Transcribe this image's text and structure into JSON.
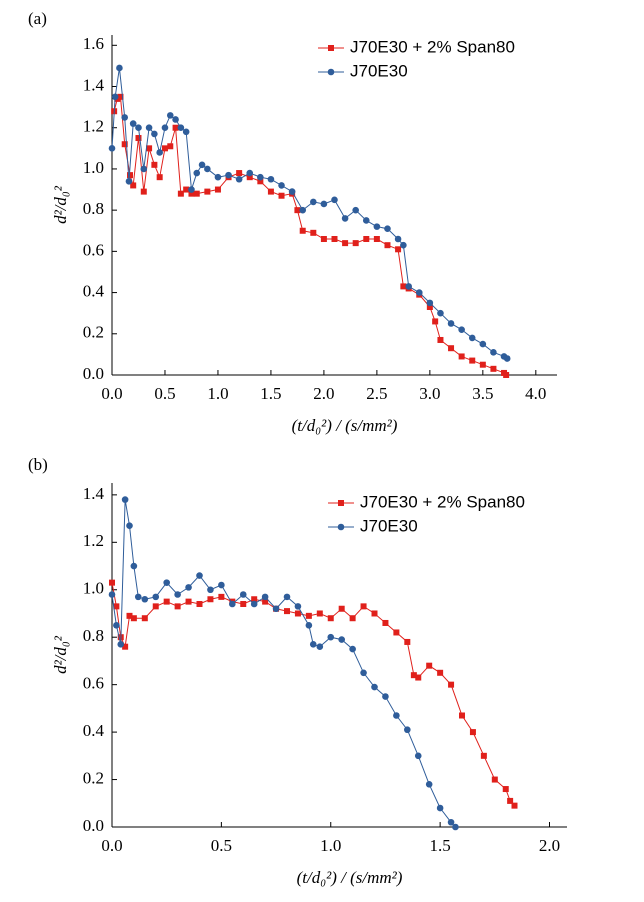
{
  "chart_data": [
    {
      "type": "line",
      "label": "(a)",
      "xlabel": "(t/d₀²) / (s/mm²)",
      "ylabel": "d²/d₀²",
      "xlim": [
        0,
        4.2
      ],
      "ylim": [
        0,
        1.65
      ],
      "xticks": [
        {
          "value": 0,
          "label": "0.0"
        },
        0.5,
        {
          "value": 1,
          "label": "1.0"
        },
        1.5,
        {
          "value": 2,
          "label": "2.0"
        },
        2.5,
        {
          "value": 3,
          "label": "3.0"
        },
        3.5,
        {
          "value": 4,
          "label": "4.0"
        }
      ],
      "yticks": [
        {
          "value": 0,
          "label": "0.0"
        },
        0.2,
        0.4,
        0.6,
        0.8,
        {
          "value": 1,
          "label": "1.0"
        },
        1.2,
        1.4,
        1.6
      ],
      "legend": "upper right",
      "series": [
        {
          "name": "J70E30 + 2% Span80",
          "color": "#e0201b",
          "marker": "square",
          "x": [
            0.02,
            0.05,
            0.08,
            0.12,
            0.17,
            0.2,
            0.25,
            0.3,
            0.35,
            0.4,
            0.45,
            0.5,
            0.55,
            0.6,
            0.65,
            0.7,
            0.75,
            0.8,
            0.9,
            1.0,
            1.1,
            1.2,
            1.3,
            1.4,
            1.5,
            1.6,
            1.7,
            1.75,
            1.8,
            1.9,
            2.0,
            2.1,
            2.2,
            2.3,
            2.4,
            2.5,
            2.6,
            2.7,
            2.75,
            2.8,
            2.9,
            3.0,
            3.05,
            3.1,
            3.2,
            3.3,
            3.4,
            3.5,
            3.6,
            3.7,
            3.72
          ],
          "values": [
            1.28,
            1.34,
            1.35,
            1.12,
            0.97,
            0.92,
            1.15,
            0.89,
            1.1,
            1.02,
            0.96,
            1.1,
            1.11,
            1.2,
            0.88,
            0.9,
            0.88,
            0.88,
            0.89,
            0.9,
            0.96,
            0.98,
            0.96,
            0.94,
            0.89,
            0.87,
            0.88,
            0.8,
            0.7,
            0.69,
            0.66,
            0.66,
            0.64,
            0.64,
            0.66,
            0.66,
            0.63,
            0.61,
            0.43,
            0.42,
            0.39,
            0.33,
            0.26,
            0.17,
            0.13,
            0.09,
            0.07,
            0.05,
            0.03,
            0.01,
            0.0
          ]
        },
        {
          "name": "J70E30",
          "color": "#2f5d9a",
          "marker": "circle",
          "x": [
            0.0,
            0.03,
            0.07,
            0.12,
            0.16,
            0.2,
            0.25,
            0.3,
            0.35,
            0.4,
            0.45,
            0.5,
            0.55,
            0.6,
            0.65,
            0.7,
            0.75,
            0.8,
            0.85,
            0.9,
            1.0,
            1.1,
            1.2,
            1.3,
            1.4,
            1.5,
            1.6,
            1.7,
            1.8,
            1.9,
            2.0,
            2.1,
            2.2,
            2.3,
            2.4,
            2.5,
            2.6,
            2.7,
            2.75,
            2.8,
            2.9,
            3.0,
            3.1,
            3.2,
            3.3,
            3.4,
            3.5,
            3.6,
            3.7,
            3.73
          ],
          "values": [
            1.1,
            1.35,
            1.49,
            1.25,
            0.94,
            1.22,
            1.2,
            1.0,
            1.2,
            1.17,
            1.08,
            1.2,
            1.26,
            1.24,
            1.2,
            1.18,
            0.9,
            0.98,
            1.02,
            1.0,
            0.96,
            0.97,
            0.95,
            0.98,
            0.96,
            0.95,
            0.92,
            0.89,
            0.8,
            0.84,
            0.83,
            0.85,
            0.76,
            0.8,
            0.75,
            0.72,
            0.71,
            0.66,
            0.63,
            0.43,
            0.4,
            0.35,
            0.3,
            0.25,
            0.22,
            0.18,
            0.15,
            0.11,
            0.09,
            0.08
          ]
        }
      ]
    },
    {
      "type": "line",
      "label": "(b)",
      "xlabel": "(t/d₀²) / (s/mm²)",
      "ylabel": "d²/d₀²",
      "xlim": [
        0,
        2.08
      ],
      "ylim": [
        0,
        1.45
      ],
      "xticks": [
        {
          "value": 0,
          "label": "0.0"
        },
        0.5,
        {
          "value": 1,
          "label": "1.0"
        },
        1.5,
        {
          "value": 2,
          "label": "2.0"
        }
      ],
      "yticks": [
        {
          "value": 0,
          "label": "0.0"
        },
        0.2,
        0.4,
        0.6,
        0.8,
        {
          "value": 1,
          "label": "1.0"
        },
        1.2,
        1.4
      ],
      "legend": "upper right",
      "series": [
        {
          "name": "J70E30 + 2% Span80",
          "color": "#e0201b",
          "marker": "square",
          "x": [
            0.0,
            0.02,
            0.04,
            0.06,
            0.08,
            0.1,
            0.15,
            0.2,
            0.25,
            0.3,
            0.35,
            0.4,
            0.45,
            0.5,
            0.55,
            0.6,
            0.65,
            0.7,
            0.75,
            0.8,
            0.85,
            0.9,
            0.95,
            1.0,
            1.05,
            1.1,
            1.15,
            1.2,
            1.25,
            1.3,
            1.35,
            1.38,
            1.4,
            1.45,
            1.5,
            1.55,
            1.6,
            1.65,
            1.7,
            1.75,
            1.8,
            1.82,
            1.84
          ],
          "values": [
            1.03,
            0.93,
            0.8,
            0.76,
            0.89,
            0.88,
            0.88,
            0.93,
            0.95,
            0.93,
            0.95,
            0.94,
            0.96,
            0.97,
            0.95,
            0.94,
            0.96,
            0.95,
            0.92,
            0.91,
            0.9,
            0.89,
            0.9,
            0.88,
            0.92,
            0.88,
            0.93,
            0.9,
            0.86,
            0.82,
            0.78,
            0.64,
            0.63,
            0.68,
            0.65,
            0.6,
            0.47,
            0.4,
            0.3,
            0.2,
            0.16,
            0.11,
            0.09
          ]
        },
        {
          "name": "J70E30",
          "color": "#2f5d9a",
          "marker": "circle",
          "x": [
            0.0,
            0.02,
            0.04,
            0.06,
            0.08,
            0.1,
            0.12,
            0.15,
            0.2,
            0.25,
            0.3,
            0.35,
            0.4,
            0.45,
            0.5,
            0.55,
            0.6,
            0.65,
            0.7,
            0.75,
            0.8,
            0.85,
            0.9,
            0.92,
            0.95,
            1.0,
            1.05,
            1.1,
            1.15,
            1.2,
            1.25,
            1.3,
            1.35,
            1.4,
            1.45,
            1.5,
            1.55,
            1.57
          ],
          "values": [
            0.98,
            0.85,
            0.77,
            1.38,
            1.27,
            1.1,
            0.97,
            0.96,
            0.97,
            1.03,
            0.98,
            1.01,
            1.06,
            1.0,
            1.02,
            0.94,
            0.98,
            0.94,
            0.97,
            0.92,
            0.97,
            0.93,
            0.85,
            0.77,
            0.76,
            0.8,
            0.79,
            0.75,
            0.65,
            0.59,
            0.55,
            0.47,
            0.41,
            0.3,
            0.18,
            0.08,
            0.02,
            0.0
          ]
        }
      ]
    }
  ]
}
